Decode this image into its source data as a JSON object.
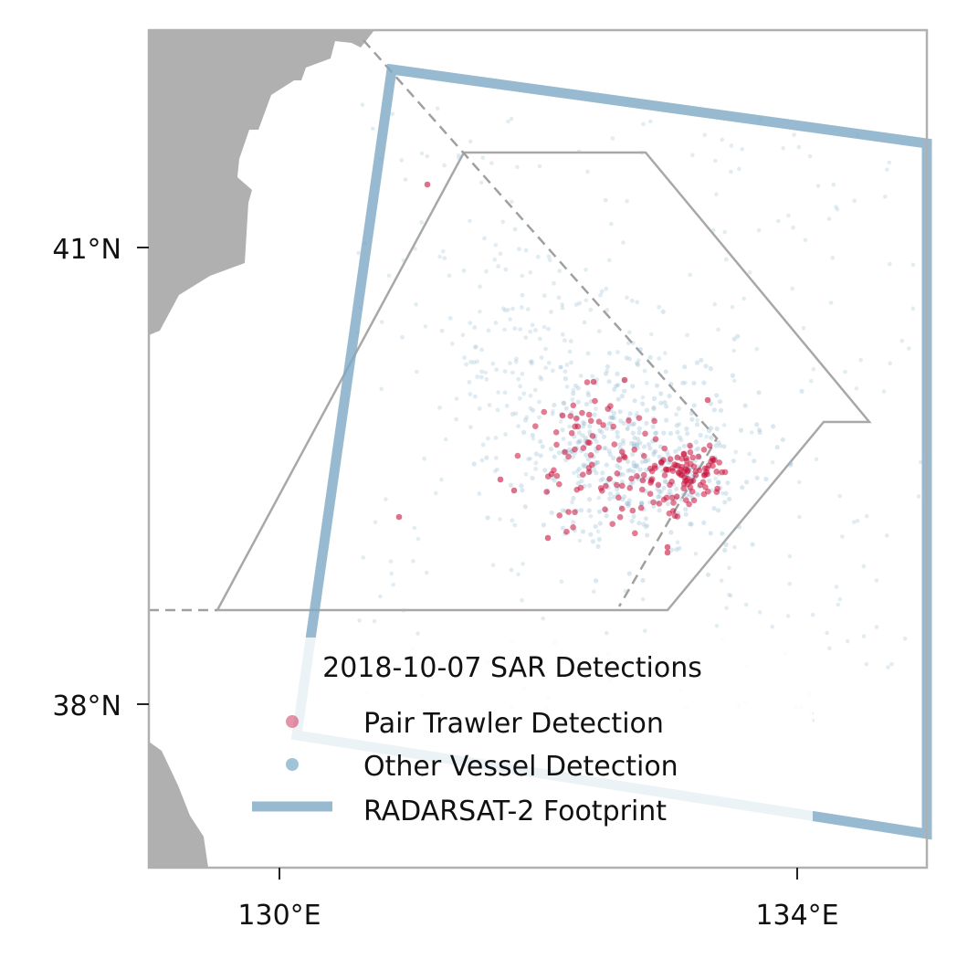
{
  "map": {
    "x_axis": {
      "ticks": [
        {
          "value": 130,
          "label": "130°E"
        },
        {
          "value": 134,
          "label": "134°E"
        }
      ]
    },
    "y_axis": {
      "ticks": [
        {
          "value": 41,
          "label": "41°N"
        },
        {
          "value": 38,
          "label": "38°N"
        }
      ]
    },
    "extent": {
      "lon": [
        129,
        135
      ],
      "lat": [
        37,
        42.5
      ]
    },
    "colors": {
      "land": "#b0b0b0",
      "frame": "#b0b0b0",
      "pair_trawler": "#c8103c",
      "other_vessel": "#97bcd3",
      "footprint": "#7ea9c6",
      "zone_outline": "#a8a8a8"
    }
  },
  "legend": {
    "title": "2018-10-07 SAR Detections",
    "pair_trawler_label": "Pair Trawler Detection",
    "other_vessel_label": "Other Vessel Detection",
    "footprint_label": "RADARSAT-2 Footprint"
  },
  "chart_data": {
    "type": "scatter",
    "series": [
      {
        "name": "Pair Trawler Detection",
        "count_approx": 190,
        "lon_range": [
          131.7,
          133.4
        ],
        "lat_range": [
          38.9,
          40.6
        ]
      },
      {
        "name": "Other Vessel Detection",
        "count_approx": 900,
        "lon_range": [
          130.5,
          135
        ],
        "lat_range": [
          37.9,
          41.9
        ]
      }
    ],
    "footprint_polygon": [
      [
        130.8,
        41.7
      ],
      [
        135,
        41.2
      ],
      [
        135,
        37.2
      ],
      [
        130.1,
        37.8
      ]
    ],
    "zone_polygon": [
      [
        131.4,
        41.1
      ],
      [
        132.8,
        41.1
      ],
      [
        134.6,
        39.8
      ],
      [
        134.2,
        39.8
      ],
      [
        133.2,
        38.7
      ],
      [
        129.6,
        38.7
      ]
    ],
    "dashed_boundaries": [
      [
        [
          130.7,
          41.9
        ],
        [
          133.3,
          39.7
        ],
        [
          132.8,
          38.7
        ]
      ],
      [
        [
          129,
          38.7
        ],
        [
          129.6,
          38.7
        ]
      ]
    ]
  }
}
